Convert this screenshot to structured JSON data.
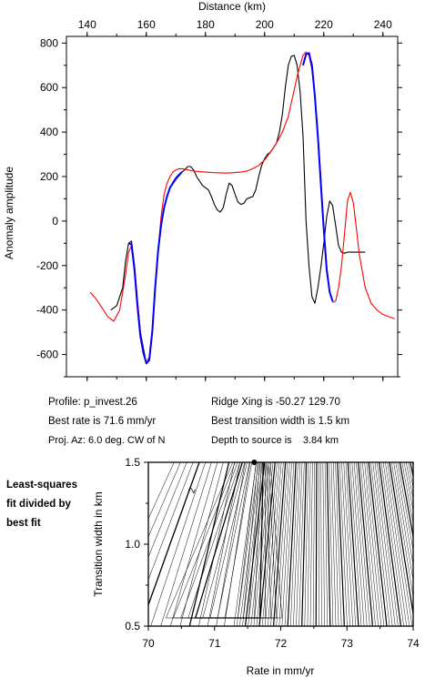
{
  "top_chart": {
    "xlabel": "Distance (km)",
    "ylabel": "Anomaly amplitude",
    "xlim": [
      133,
      245
    ],
    "ylim": [
      -700,
      830
    ],
    "xticks": [
      140,
      160,
      180,
      200,
      220,
      240
    ],
    "yticks": [
      -600,
      -400,
      -200,
      0,
      200,
      400,
      600,
      800
    ],
    "colors": {
      "observed": "#000000",
      "model": "#ff0000",
      "fit_segment": "#0000ff"
    }
  },
  "info": {
    "profile": "Profile: p_invest.26",
    "best_rate": "Best rate is 71.6 mm/yr",
    "proj_az": "Proj. Az: 6.0 deg. CW of N",
    "ridge_xing": "Ridge Xing is -50.27 129.70",
    "transition_width": "Best transition width is 1.5 km",
    "depth": "Depth to source is    3.84 km"
  },
  "side_note": [
    "Least-squares",
    "fit divided by",
    "best fit"
  ],
  "bottom_chart": {
    "xlabel": "Rate in mm/yr",
    "ylabel": "Transition width in km",
    "xlim": [
      70,
      74
    ],
    "ylim": [
      0.5,
      1.5
    ],
    "xticks": [
      "70",
      "71",
      "72",
      "73",
      "74"
    ],
    "yticks": [
      "0.5",
      "1.0",
      "1.5"
    ],
    "contour_label": "2",
    "best_fit_marker": {
      "rate": 71.6,
      "width": 1.5
    }
  },
  "chart_data": [
    {
      "type": "line",
      "xlabel": "Distance (km)",
      "ylabel": "Anomaly amplitude",
      "xlim": [
        133,
        245
      ],
      "ylim": [
        -700,
        830
      ],
      "series": [
        {
          "color": "#000000",
          "x": [
            148,
            150,
            152,
            153,
            154,
            155,
            156,
            157,
            158,
            159,
            160,
            161,
            162,
            163,
            164,
            165,
            166,
            167,
            168,
            169,
            170,
            171,
            172,
            173,
            174,
            175,
            176,
            177,
            178,
            179,
            180,
            181,
            182,
            183,
            184,
            185,
            186,
            187,
            188,
            189,
            190,
            191,
            192,
            193,
            194,
            195,
            196,
            197,
            198,
            199,
            200,
            201,
            202,
            203,
            204,
            205,
            206,
            207,
            208,
            209,
            210,
            211,
            212,
            213,
            214,
            215,
            216,
            217,
            218,
            219,
            220,
            221,
            222,
            223,
            224,
            225,
            226,
            227,
            228,
            229,
            230,
            231,
            232,
            233,
            234
          ],
          "y": [
            -400,
            -380,
            -300,
            -180,
            -100,
            -90,
            -200,
            -360,
            -500,
            -570,
            -640,
            -620,
            -500,
            -300,
            -130,
            -20,
            60,
            110,
            150,
            175,
            195,
            210,
            220,
            230,
            245,
            245,
            230,
            200,
            180,
            160,
            150,
            140,
            110,
            75,
            50,
            40,
            60,
            120,
            170,
            160,
            120,
            85,
            75,
            80,
            100,
            105,
            110,
            140,
            200,
            250,
            280,
            300,
            310,
            330,
            350,
            400,
            480,
            600,
            700,
            740,
            745,
            700,
            580,
            380,
            0,
            -200,
            -340,
            -370,
            -300,
            -210,
            -100,
            20,
            90,
            70,
            -20,
            -110,
            -140,
            -145,
            -140,
            -140,
            -140,
            -140,
            -140,
            -140,
            -140
          ],
          "x_fix": true
        },
        {
          "color": "#ff0000",
          "x": [
            141,
            143,
            145,
            147,
            149,
            151,
            153,
            154,
            155,
            156,
            157,
            158,
            159,
            160,
            161,
            162,
            163,
            164,
            165,
            166,
            167,
            168,
            169,
            170,
            171,
            172,
            173,
            174,
            176,
            178,
            180,
            182,
            184,
            186,
            188,
            190,
            192,
            194,
            196,
            198,
            200,
            202,
            204,
            206,
            208,
            209,
            210,
            211,
            212,
            213,
            214,
            215,
            216,
            217,
            218,
            219,
            220,
            221,
            222,
            223,
            224,
            225,
            226,
            227,
            228,
            229,
            230,
            231,
            232,
            234,
            236,
            238,
            240,
            242,
            244
          ],
          "y": [
            -320,
            -350,
            -390,
            -430,
            -450,
            -400,
            -240,
            -140,
            -110,
            -200,
            -350,
            -500,
            -600,
            -640,
            -610,
            -480,
            -300,
            -130,
            20,
            120,
            170,
            200,
            220,
            230,
            235,
            235,
            233,
            230,
            225,
            222,
            220,
            218,
            217,
            216,
            216,
            218,
            220,
            225,
            235,
            250,
            275,
            310,
            350,
            400,
            470,
            530,
            590,
            650,
            700,
            745,
            760,
            745,
            680,
            560,
            390,
            200,
            -20,
            -200,
            -320,
            -365,
            -360,
            -300,
            -200,
            -60,
            90,
            130,
            80,
            -30,
            -150,
            -300,
            -370,
            -400,
            -420,
            -430,
            -440
          ]
        },
        {
          "color": "#0000ff",
          "x": [
            154,
            155,
            156,
            157,
            158,
            159,
            160,
            161,
            162,
            163,
            164,
            165,
            166,
            167,
            168,
            169,
            170,
            171,
            172
          ],
          "y": [
            -100,
            -105,
            -220,
            -380,
            -520,
            -590,
            -640,
            -625,
            -500,
            -300,
            -130,
            -20,
            60,
            110,
            150,
            170,
            190,
            205,
            220
          ]
        },
        {
          "color": "#0000ff",
          "x": [
            213,
            214,
            215,
            216,
            217,
            218,
            219,
            220,
            221,
            222,
            223
          ],
          "y": [
            700,
            750,
            755,
            700,
            560,
            380,
            170,
            -40,
            -220,
            -320,
            -360
          ]
        }
      ]
    },
    {
      "type": "heatmap",
      "xlabel": "Rate in mm/yr",
      "ylabel": "Transition width in km",
      "xlim": [
        70,
        74
      ],
      "ylim": [
        0.5,
        1.5
      ],
      "minimum": {
        "rate": 71.6,
        "width": 1.5
      },
      "contour_label": "2"
    }
  ]
}
